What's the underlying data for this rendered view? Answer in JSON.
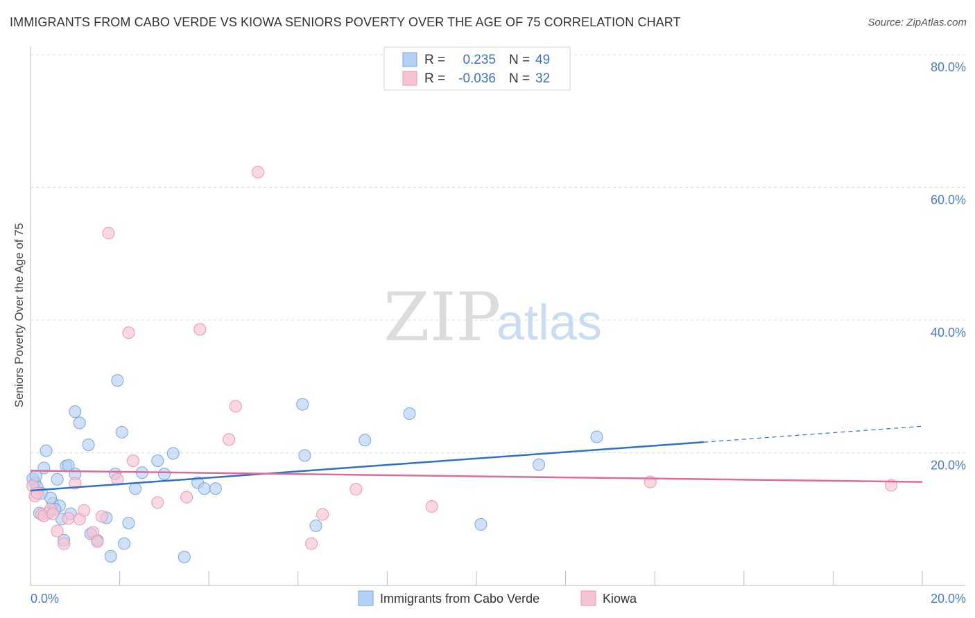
{
  "title": "IMMIGRANTS FROM CABO VERDE VS KIOWA SENIORS POVERTY OVER THE AGE OF 75 CORRELATION CHART",
  "source": "Source: ZipAtlas.com",
  "watermark": {
    "zip": "ZIP",
    "atlas": "atlas"
  },
  "colors": {
    "blue_fill": "#b5d0f2",
    "blue_stroke": "#7aa7df",
    "blue_line": "#2f6fca",
    "pink_fill": "#f7c3d3",
    "pink_stroke": "#ea97b2",
    "pink_line": "#e06a96",
    "tick_text": "#4a7cc7",
    "grid": "#dcdcdc"
  },
  "legend": {
    "rows": [
      {
        "r_label": "R =",
        "r_value": "0.235",
        "n_label": "N =",
        "n_value": "49"
      },
      {
        "r_label": "R =",
        "r_value": "-0.036",
        "n_label": "N =",
        "n_value": "32"
      }
    ]
  },
  "chart_data": {
    "type": "scatter",
    "title": "IMMIGRANTS FROM CABO VERDE VS KIOWA SENIORS POVERTY OVER THE AGE OF 75 CORRELATION CHART",
    "xlabel": "",
    "ylabel": "Seniors Poverty Over the Age of 75",
    "xlim": [
      0,
      20
    ],
    "ylim": [
      0,
      80
    ],
    "x_tick_labels": [
      "0.0%",
      "20.0%"
    ],
    "y_tick_labels": [
      "20.0%",
      "40.0%",
      "60.0%",
      "80.0%"
    ],
    "y_tick_values": [
      20,
      40,
      60,
      80
    ],
    "series": [
      {
        "name": "Immigrants from Cabo Verde",
        "color": "blue",
        "points": [
          [
            0.1,
            15.5
          ],
          [
            0.15,
            14.8
          ],
          [
            0.25,
            13.9
          ],
          [
            0.3,
            17.7
          ],
          [
            0.35,
            20.3
          ],
          [
            0.4,
            10.9
          ],
          [
            0.5,
            12.4
          ],
          [
            0.6,
            16.0
          ],
          [
            0.65,
            12.0
          ],
          [
            0.7,
            10.0
          ],
          [
            0.75,
            6.8
          ],
          [
            0.8,
            18.0
          ],
          [
            0.85,
            18.1
          ],
          [
            0.9,
            10.8
          ],
          [
            1.0,
            16.8
          ],
          [
            1.0,
            26.2
          ],
          [
            1.1,
            24.5
          ],
          [
            1.3,
            21.2
          ],
          [
            1.35,
            7.8
          ],
          [
            1.5,
            6.8
          ],
          [
            1.7,
            10.2
          ],
          [
            1.8,
            4.4
          ],
          [
            1.9,
            16.8
          ],
          [
            1.95,
            30.9
          ],
          [
            2.05,
            23.1
          ],
          [
            2.1,
            6.3
          ],
          [
            2.2,
            9.4
          ],
          [
            2.35,
            14.6
          ],
          [
            2.5,
            17.0
          ],
          [
            2.85,
            18.8
          ],
          [
            3.0,
            16.8
          ],
          [
            3.2,
            19.9
          ],
          [
            3.45,
            4.3
          ],
          [
            3.75,
            15.5
          ],
          [
            3.9,
            14.6
          ],
          [
            4.15,
            14.6
          ],
          [
            6.1,
            27.3
          ],
          [
            6.15,
            19.6
          ],
          [
            6.4,
            9.0
          ],
          [
            7.5,
            21.9
          ],
          [
            8.5,
            25.9
          ],
          [
            10.1,
            9.2
          ],
          [
            11.4,
            18.2
          ],
          [
            12.7,
            22.4
          ],
          [
            0.05,
            16.1
          ],
          [
            0.12,
            16.5
          ],
          [
            0.2,
            10.9
          ],
          [
            0.45,
            13.2
          ],
          [
            0.55,
            11.5
          ]
        ]
      },
      {
        "name": "Kiowa",
        "color": "pink",
        "points": [
          [
            0.05,
            15.0
          ],
          [
            0.1,
            13.5
          ],
          [
            0.15,
            13.9
          ],
          [
            0.25,
            10.7
          ],
          [
            0.3,
            10.5
          ],
          [
            0.45,
            11.5
          ],
          [
            0.5,
            10.8
          ],
          [
            0.6,
            8.2
          ],
          [
            0.75,
            6.3
          ],
          [
            0.85,
            10.1
          ],
          [
            1.0,
            15.4
          ],
          [
            1.1,
            10.0
          ],
          [
            1.2,
            11.3
          ],
          [
            1.4,
            8.0
          ],
          [
            1.5,
            6.6
          ],
          [
            1.6,
            10.4
          ],
          [
            1.75,
            53.1
          ],
          [
            1.95,
            16.0
          ],
          [
            2.2,
            38.1
          ],
          [
            2.3,
            18.8
          ],
          [
            2.85,
            12.5
          ],
          [
            3.5,
            13.3
          ],
          [
            3.8,
            38.6
          ],
          [
            4.45,
            22.0
          ],
          [
            4.6,
            27.0
          ],
          [
            5.1,
            62.3
          ],
          [
            6.3,
            6.3
          ],
          [
            6.55,
            10.7
          ],
          [
            7.3,
            14.5
          ],
          [
            9.0,
            11.9
          ],
          [
            13.9,
            15.6
          ],
          [
            19.3,
            15.1
          ]
        ]
      }
    ],
    "trend_lines": [
      {
        "series": "Immigrants from Cabo Verde",
        "x_start": 0,
        "y_start": 14.3,
        "x_solid_end": 15.1,
        "y_solid_end": 21.6,
        "x_end": 20,
        "y_end": 24.0
      },
      {
        "series": "Kiowa",
        "x_start": 0,
        "y_start": 17.3,
        "x_end": 20,
        "y_end": 15.6
      }
    ],
    "legend_position": "top-center",
    "grid": true
  }
}
